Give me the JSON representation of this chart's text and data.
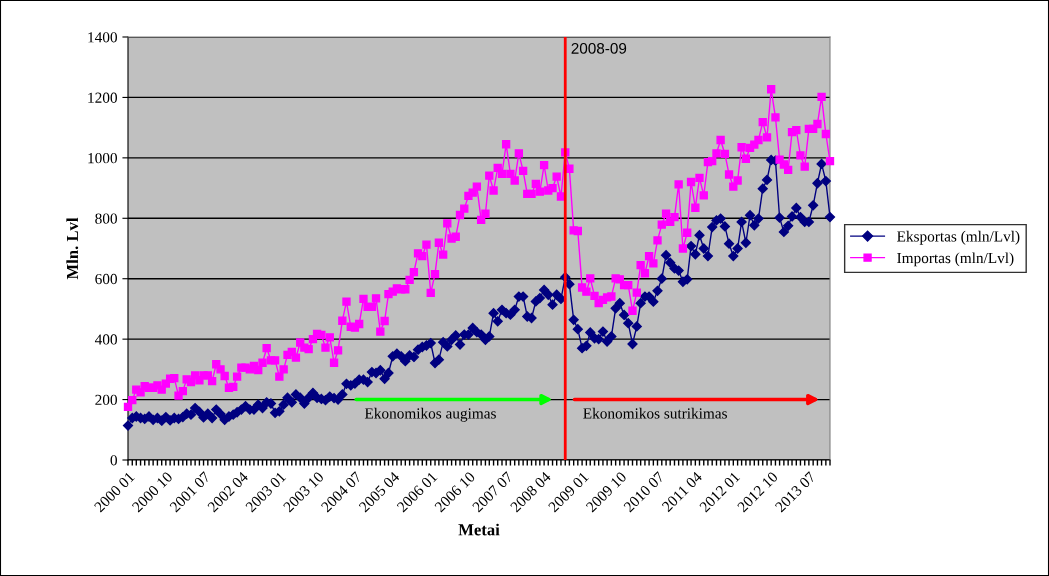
{
  "chart_data": {
    "type": "line",
    "xlabel": "Metai",
    "ylabel": "Mln. Lvl",
    "x": [
      "2000-01",
      "2000-02",
      "2000-03",
      "2000-04",
      "2000-05",
      "2000-06",
      "2000-07",
      "2000-08",
      "2000-09",
      "2000-10",
      "2000-11",
      "2000-12",
      "2001-01",
      "2001-02",
      "2001-03",
      "2001-04",
      "2001-05",
      "2001-06",
      "2001-07",
      "2001-08",
      "2001-09",
      "2001-10",
      "2001-11",
      "2001-12",
      "2002-01",
      "2002-02",
      "2002-03",
      "2002-04",
      "2002-05",
      "2002-06",
      "2002-07",
      "2002-08",
      "2002-09",
      "2002-10",
      "2002-11",
      "2002-12",
      "2003-01",
      "2003-02",
      "2003-03",
      "2003-04",
      "2003-05",
      "2003-06",
      "2003-07",
      "2003-08",
      "2003-09",
      "2003-10",
      "2003-11",
      "2003-12",
      "2004-01",
      "2004-02",
      "2004-03",
      "2004-04",
      "2004-05",
      "2004-06",
      "2004-07",
      "2004-08",
      "2004-09",
      "2004-10",
      "2004-11",
      "2004-12",
      "2005-01",
      "2005-02",
      "2005-03",
      "2005-04",
      "2005-05",
      "2005-06",
      "2005-07",
      "2005-08",
      "2005-09",
      "2005-10",
      "2005-11",
      "2005-12",
      "2006-01",
      "2006-02",
      "2006-03",
      "2006-04",
      "2006-05",
      "2006-06",
      "2006-07",
      "2006-08",
      "2006-09",
      "2006-10",
      "2006-11",
      "2006-12",
      "2007-01",
      "2007-02",
      "2007-03",
      "2007-04",
      "2007-05",
      "2007-06",
      "2007-07",
      "2007-08",
      "2007-09",
      "2007-10",
      "2007-11",
      "2007-12",
      "2008-01",
      "2008-02",
      "2008-03",
      "2008-04",
      "2008-05",
      "2008-06",
      "2008-07",
      "2008-08",
      "2008-09",
      "2008-10",
      "2008-11",
      "2008-12",
      "2009-01",
      "2009-02",
      "2009-03",
      "2009-04",
      "2009-05",
      "2009-06",
      "2009-07",
      "2009-08",
      "2009-09",
      "2009-10",
      "2009-11",
      "2009-12",
      "2010-01",
      "2010-02",
      "2010-03",
      "2010-04",
      "2010-05",
      "2010-06",
      "2010-07",
      "2010-08",
      "2010-09",
      "2010-10",
      "2010-11",
      "2010-12",
      "2011-01",
      "2011-02",
      "2011-03",
      "2011-04",
      "2011-05",
      "2011-06",
      "2011-07",
      "2011-08",
      "2011-09",
      "2011-10",
      "2011-11",
      "2011-12",
      "2012-01",
      "2012-02",
      "2012-03",
      "2012-04",
      "2012-05",
      "2012-06",
      "2012-07",
      "2012-08",
      "2012-09",
      "2012-10",
      "2012-11",
      "2012-12",
      "2013-01",
      "2013-02",
      "2013-03",
      "2013-04",
      "2013-05",
      "2013-06",
      "2013-07",
      "2013-08",
      "2013-09",
      "2013-10",
      "2013-11",
      "2013-12"
    ],
    "series": [
      {
        "name": "Eksportas (mln/Lvl)",
        "color": "#000080",
        "marker": "diamond",
        "values": [
          114,
          139,
          144,
          139,
          136,
          144,
          133,
          139,
          130,
          142,
          131,
          139,
          136,
          142,
          153,
          150,
          172,
          159,
          141,
          153,
          139,
          167,
          152,
          133,
          144,
          150,
          158,
          167,
          178,
          167,
          167,
          183,
          172,
          191,
          187,
          156,
          161,
          183,
          206,
          191,
          217,
          206,
          187,
          206,
          222,
          206,
          202,
          198,
          210,
          205,
          200,
          217,
          252,
          247,
          253,
          266,
          266,
          258,
          291,
          288,
          297,
          269,
          288,
          343,
          352,
          343,
          327,
          346,
          341,
          365,
          374,
          379,
          387,
          321,
          332,
          390,
          376,
          398,
          412,
          382,
          415,
          415,
          437,
          423,
          415,
          398,
          409,
          486,
          459,
          497,
          486,
          481,
          497,
          541,
          541,
          475,
          470,
          525,
          536,
          563,
          547,
          514,
          547,
          533,
          605,
          582,
          464,
          433,
          370,
          378,
          422,
          403,
          400,
          425,
          392,
          409,
          502,
          519,
          480,
          453,
          384,
          442,
          519,
          541,
          541,
          524,
          560,
          600,
          678,
          653,
          634,
          627,
          590,
          598,
          708,
          681,
          744,
          700,
          675,
          771,
          793,
          799,
          773,
          716,
          675,
          700,
          788,
          719,
          810,
          777,
          799,
          898,
          927,
          993,
          991,
          802,
          755,
          775,
          806,
          834,
          804,
          788,
          788,
          843,
          916,
          980,
          923,
          804
        ]
      },
      {
        "name": "Importas (mln/Lvl)",
        "color": "#ff00ff",
        "marker": "square",
        "values": [
          176,
          198,
          233,
          224,
          244,
          239,
          239,
          247,
          233,
          253,
          269,
          271,
          213,
          228,
          267,
          258,
          280,
          264,
          280,
          280,
          261,
          317,
          300,
          278,
          239,
          242,
          276,
          306,
          306,
          300,
          311,
          298,
          322,
          370,
          330,
          330,
          276,
          300,
          348,
          358,
          339,
          389,
          372,
          367,
          400,
          417,
          414,
          372,
          406,
          322,
          363,
          461,
          524,
          441,
          438,
          450,
          533,
          507,
          507,
          535,
          425,
          460,
          549,
          557,
          568,
          565,
          565,
          596,
          622,
          684,
          675,
          713,
          553,
          615,
          719,
          680,
          783,
          733,
          739,
          811,
          832,
          874,
          885,
          905,
          795,
          815,
          941,
          892,
          967,
          947,
          1045,
          947,
          925,
          1015,
          957,
          881,
          881,
          914,
          888,
          976,
          892,
          900,
          938,
          872,
          1018,
          964,
          760,
          758,
          571,
          557,
          601,
          543,
          519,
          530,
          538,
          541,
          601,
          598,
          579,
          579,
          494,
          554,
          645,
          618,
          675,
          651,
          727,
          779,
          815,
          788,
          804,
          912,
          700,
          752,
          920,
          835,
          934,
          876,
          986,
          989,
          1015,
          1059,
          1013,
          945,
          905,
          925,
          1035,
          997,
          1033,
          1044,
          1059,
          1118,
          1068,
          1227,
          1134,
          994,
          978,
          960,
          1085,
          1092,
          1008,
          971,
          1096,
          1096,
          1112,
          1202,
          1079,
          989
        ]
      }
    ],
    "xlim": [
      "2000-01",
      "2013-12"
    ],
    "xticks": [
      {
        "value": "2000-01",
        "label": "2000 01"
      },
      {
        "value": "2000-02",
        "label": null
      },
      {
        "value": "2000-03",
        "label": null
      },
      {
        "value": "2000-04",
        "label": null
      },
      {
        "value": "2000-05",
        "label": null
      },
      {
        "value": "2000-06",
        "label": null
      },
      {
        "value": "2000-07",
        "label": null
      },
      {
        "value": "2000-08",
        "label": null
      },
      {
        "value": "2000-09",
        "label": null
      },
      {
        "value": "2000-10",
        "label": "2000 10"
      },
      {
        "value": "2000-11",
        "label": null
      },
      {
        "value": "2000-12",
        "label": null
      },
      {
        "value": "2001-01",
        "label": null
      },
      {
        "value": "2001-02",
        "label": null
      },
      {
        "value": "2001-03",
        "label": null
      },
      {
        "value": "2001-04",
        "label": null
      },
      {
        "value": "2001-05",
        "label": null
      },
      {
        "value": "2001-06",
        "label": null
      },
      {
        "value": "2001-07",
        "label": "2001 07"
      },
      {
        "value": "2001-08",
        "label": null
      },
      {
        "value": "2001-09",
        "label": null
      },
      {
        "value": "2001-10",
        "label": null
      },
      {
        "value": "2001-11",
        "label": null
      },
      {
        "value": "2001-12",
        "label": null
      },
      {
        "value": "2002-01",
        "label": null
      },
      {
        "value": "2002-02",
        "label": null
      },
      {
        "value": "2002-03",
        "label": null
      },
      {
        "value": "2002-04",
        "label": "2002 04"
      },
      {
        "value": "2002-05",
        "label": null
      },
      {
        "value": "2002-06",
        "label": null
      },
      {
        "value": "2002-07",
        "label": null
      },
      {
        "value": "2002-08",
        "label": null
      },
      {
        "value": "2002-09",
        "label": null
      },
      {
        "value": "2002-10",
        "label": null
      },
      {
        "value": "2002-11",
        "label": null
      },
      {
        "value": "2002-12",
        "label": null
      },
      {
        "value": "2003-01",
        "label": "2003 01"
      },
      {
        "value": "2003-02",
        "label": null
      },
      {
        "value": "2003-03",
        "label": null
      },
      {
        "value": "2003-04",
        "label": null
      },
      {
        "value": "2003-05",
        "label": null
      },
      {
        "value": "2003-06",
        "label": null
      },
      {
        "value": "2003-07",
        "label": null
      },
      {
        "value": "2003-08",
        "label": null
      },
      {
        "value": "2003-09",
        "label": null
      },
      {
        "value": "2003-10",
        "label": "2003 10"
      },
      {
        "value": "2003-11",
        "label": null
      },
      {
        "value": "2003-12",
        "label": null
      },
      {
        "value": "2004-01",
        "label": null
      },
      {
        "value": "2004-02",
        "label": null
      },
      {
        "value": "2004-03",
        "label": null
      },
      {
        "value": "2004-04",
        "label": null
      },
      {
        "value": "2004-05",
        "label": null
      },
      {
        "value": "2004-06",
        "label": null
      },
      {
        "value": "2004-07",
        "label": "2004 07"
      },
      {
        "value": "2004-08",
        "label": null
      },
      {
        "value": "2004-09",
        "label": null
      },
      {
        "value": "2004-10",
        "label": null
      },
      {
        "value": "2004-11",
        "label": null
      },
      {
        "value": "2004-12",
        "label": null
      },
      {
        "value": "2005-01",
        "label": null
      },
      {
        "value": "2005-02",
        "label": null
      },
      {
        "value": "2005-03",
        "label": null
      },
      {
        "value": "2005-04",
        "label": "2005 04"
      },
      {
        "value": "2005-05",
        "label": null
      },
      {
        "value": "2005-06",
        "label": null
      },
      {
        "value": "2005-07",
        "label": null
      },
      {
        "value": "2005-08",
        "label": null
      },
      {
        "value": "2005-09",
        "label": null
      },
      {
        "value": "2005-10",
        "label": null
      },
      {
        "value": "2005-11",
        "label": null
      },
      {
        "value": "2005-12",
        "label": null
      },
      {
        "value": "2006-01",
        "label": "2006 01"
      },
      {
        "value": "2006-02",
        "label": null
      },
      {
        "value": "2006-03",
        "label": null
      },
      {
        "value": "2006-04",
        "label": null
      },
      {
        "value": "2006-05",
        "label": null
      },
      {
        "value": "2006-06",
        "label": null
      },
      {
        "value": "2006-07",
        "label": null
      },
      {
        "value": "2006-08",
        "label": null
      },
      {
        "value": "2006-09",
        "label": null
      },
      {
        "value": "2006-10",
        "label": "2006 10"
      },
      {
        "value": "2006-11",
        "label": null
      },
      {
        "value": "2006-12",
        "label": null
      },
      {
        "value": "2007-01",
        "label": null
      },
      {
        "value": "2007-02",
        "label": null
      },
      {
        "value": "2007-03",
        "label": null
      },
      {
        "value": "2007-04",
        "label": null
      },
      {
        "value": "2007-05",
        "label": null
      },
      {
        "value": "2007-06",
        "label": null
      },
      {
        "value": "2007-07",
        "label": "2007 07"
      },
      {
        "value": "2007-08",
        "label": null
      },
      {
        "value": "2007-09",
        "label": null
      },
      {
        "value": "2007-10",
        "label": null
      },
      {
        "value": "2007-11",
        "label": null
      },
      {
        "value": "2007-12",
        "label": null
      },
      {
        "value": "2008-01",
        "label": null
      },
      {
        "value": "2008-02",
        "label": null
      },
      {
        "value": "2008-03",
        "label": null
      },
      {
        "value": "2008-04",
        "label": "2008 04"
      },
      {
        "value": "2008-05",
        "label": null
      },
      {
        "value": "2008-06",
        "label": null
      },
      {
        "value": "2008-07",
        "label": null
      },
      {
        "value": "2008-08",
        "label": null
      },
      {
        "value": "2008-09",
        "label": null
      },
      {
        "value": "2008-10",
        "label": null
      },
      {
        "value": "2008-11",
        "label": null
      },
      {
        "value": "2008-12",
        "label": null
      },
      {
        "value": "2009-01",
        "label": "2009 01"
      },
      {
        "value": "2009-02",
        "label": null
      },
      {
        "value": "2009-03",
        "label": null
      },
      {
        "value": "2009-04",
        "label": null
      },
      {
        "value": "2009-05",
        "label": null
      },
      {
        "value": "2009-06",
        "label": null
      },
      {
        "value": "2009-07",
        "label": null
      },
      {
        "value": "2009-08",
        "label": null
      },
      {
        "value": "2009-09",
        "label": null
      },
      {
        "value": "2009-10",
        "label": "2009 10"
      },
      {
        "value": "2009-11",
        "label": null
      },
      {
        "value": "2009-12",
        "label": null
      },
      {
        "value": "2010-01",
        "label": null
      },
      {
        "value": "2010-02",
        "label": null
      },
      {
        "value": "2010-03",
        "label": null
      },
      {
        "value": "2010-04",
        "label": null
      },
      {
        "value": "2010-05",
        "label": null
      },
      {
        "value": "2010-06",
        "label": null
      },
      {
        "value": "2010-07",
        "label": "2010 07"
      },
      {
        "value": "2010-08",
        "label": null
      },
      {
        "value": "2010-09",
        "label": null
      },
      {
        "value": "2010-10",
        "label": null
      },
      {
        "value": "2010-11",
        "label": null
      },
      {
        "value": "2010-12",
        "label": null
      },
      {
        "value": "2011-01",
        "label": null
      },
      {
        "value": "2011-02",
        "label": null
      },
      {
        "value": "2011-03",
        "label": null
      },
      {
        "value": "2011-04",
        "label": "2011 04"
      },
      {
        "value": "2011-05",
        "label": null
      },
      {
        "value": "2011-06",
        "label": null
      },
      {
        "value": "2011-07",
        "label": null
      },
      {
        "value": "2011-08",
        "label": null
      },
      {
        "value": "2011-09",
        "label": null
      },
      {
        "value": "2011-10",
        "label": null
      },
      {
        "value": "2011-11",
        "label": null
      },
      {
        "value": "2011-12",
        "label": null
      },
      {
        "value": "2012-01",
        "label": "2012 01"
      },
      {
        "value": "2012-02",
        "label": null
      },
      {
        "value": "2012-03",
        "label": null
      },
      {
        "value": "2012-04",
        "label": null
      },
      {
        "value": "2012-05",
        "label": null
      },
      {
        "value": "2012-06",
        "label": null
      },
      {
        "value": "2012-07",
        "label": null
      },
      {
        "value": "2012-08",
        "label": null
      },
      {
        "value": "2012-09",
        "label": null
      },
      {
        "value": "2012-10",
        "label": "2012 10"
      },
      {
        "value": "2012-11",
        "label": null
      },
      {
        "value": "2012-12",
        "label": null
      },
      {
        "value": "2013-01",
        "label": null
      },
      {
        "value": "2013-02",
        "label": null
      },
      {
        "value": "2013-03",
        "label": null
      },
      {
        "value": "2013-04",
        "label": null
      },
      {
        "value": "2013-05",
        "label": null
      },
      {
        "value": "2013-06",
        "label": null
      },
      {
        "value": "2013-07",
        "label": "2013 07"
      },
      {
        "value": "2013-08",
        "label": null
      },
      {
        "value": "2013-09",
        "label": null
      },
      {
        "value": "2013-10",
        "label": null
      },
      {
        "value": "2013-11",
        "label": null
      },
      {
        "value": "2013-12",
        "label": null
      }
    ],
    "ylim": [
      0,
      1400
    ],
    "yticks": [
      0,
      200,
      400,
      600,
      800,
      1000,
      1200,
      1400
    ],
    "grid": "y",
    "legend": "right",
    "line_style": "solid",
    "ref_lines": [
      {
        "axis": "x",
        "value": "2008-09",
        "label": "2008-09",
        "color": "#ff0000"
      }
    ],
    "annotations": [
      "Ekonomikos augimas",
      "Ekonomikos sutrikimas"
    ]
  }
}
